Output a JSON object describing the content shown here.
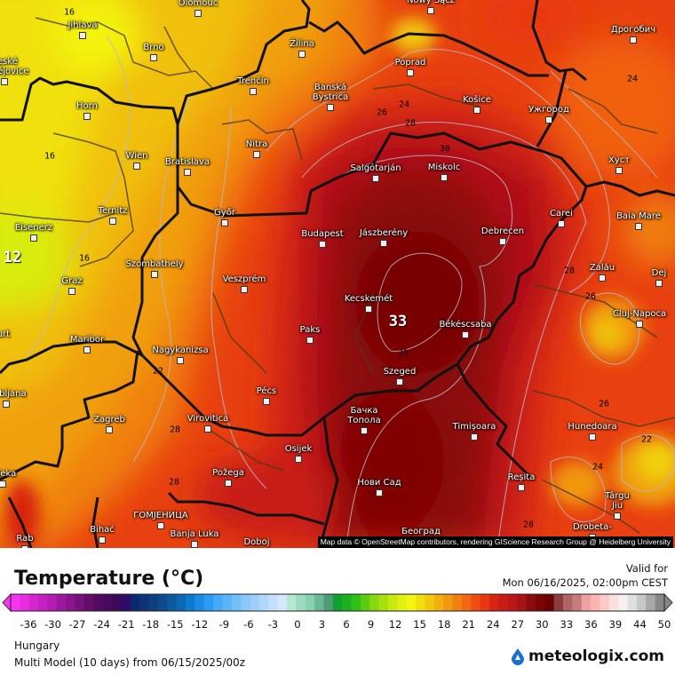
{
  "map": {
    "cities": [
      "Olomouc",
      "Nowy Sącz",
      "Jihlava",
      "Brno",
      "Žilina",
      "Poprad",
      "Дрогобич",
      "České Budějovice",
      "Trenčín",
      "Banská Bystrica",
      "Košice",
      "Ужгород",
      "Horn",
      "Nitra",
      "Wien",
      "Bratislava",
      "Salgótarján",
      "Miskolc",
      "Хуст",
      "Ternitz",
      "Eisenerz",
      "Győr",
      "Carei",
      "Baia Mare",
      "Budapest",
      "Jászberény",
      "Debrecen",
      "Szombathely",
      "Graz",
      "Veszprém",
      "Zalău",
      "Dej",
      "Kecskemét",
      "Cluj-Napoca",
      "Békéscsaba",
      "Paks",
      "Maribor",
      "Nagykanizsa",
      "Klagenfurt",
      "Szeged",
      "Ljubljana",
      "Pécs",
      "Бачка Топола",
      "Timișoara",
      "Virovitica",
      "Hunedoara",
      "Zagreb",
      "Osijek",
      "Rijeka",
      "Požega",
      "Reșita",
      "Нови Сад",
      "Târgu Jiu",
      "ГОМЈЕНИЦА",
      "Rab",
      "Bihać",
      "Banja Luka",
      "Doboj",
      "Београд",
      "Drobeta-"
    ],
    "contour_labels": [
      "16",
      "16",
      "16",
      "12",
      "24",
      "24",
      "26",
      "28",
      "30",
      "28",
      "26",
      "33",
      "32",
      "22",
      "28",
      "28",
      "26",
      "22",
      "24",
      "28"
    ],
    "attribution": "Map data © OpenStreetMap contributors, rendering GIScience Research Group @ Heidelberg University",
    "colors": {
      "hot_core": "#780404",
      "hot": "#b01018",
      "warm": "#e84010",
      "mild": "#f0a010",
      "cool": "#f0e010"
    }
  },
  "legend": {
    "title": "Temperature (°C)",
    "valid_label": "Valid for",
    "valid_date": "Mon 06/16/2025, 02:00pm CEST",
    "ticks": [
      "-36",
      "-30",
      "-27",
      "-24",
      "-21",
      "-18",
      "-15",
      "-12",
      "-9",
      "-6",
      "-3",
      "0",
      "3",
      "6",
      "9",
      "12",
      "15",
      "18",
      "21",
      "24",
      "27",
      "30",
      "33",
      "36",
      "39",
      "44",
      "50"
    ],
    "palette": [
      "#f436f0",
      "#e82de0",
      "#d626d0",
      "#c421c0",
      "#b01db0",
      "#9c199e",
      "#8a148c",
      "#76107a",
      "#640c6a",
      "#540a60",
      "#480a5c",
      "#3c0858",
      "#2c0c66",
      "#0c2870",
      "#0e3478",
      "#0e3e80",
      "#0c4a8c",
      "#0a5aa0",
      "#0a6ab4",
      "#0c7cd0",
      "#1a8ce6",
      "#2a9cf4",
      "#46aaf8",
      "#5cb4f8",
      "#72bef8",
      "#88c8fa",
      "#9ccffa",
      "#b0d8fa",
      "#c4e0fa",
      "#d6e8fa",
      "#b4e8d0",
      "#9cdcc0",
      "#88d0b0",
      "#6ab894",
      "#4e9c78",
      "#10a030",
      "#1cb020",
      "#30c018",
      "#5ccc10",
      "#88d810",
      "#a8e010",
      "#c8e810",
      "#e0f010",
      "#f4f410",
      "#f0e010",
      "#f0c810",
      "#f0b010",
      "#f09810",
      "#f08010",
      "#f06810",
      "#f04c10",
      "#e83810",
      "#d82410",
      "#c81c14",
      "#b81818",
      "#a81416",
      "#8c0a0a",
      "#780404",
      "#6c0000",
      "#8c3c3c",
      "#b06464",
      "#c47c7c",
      "#f0a0a0",
      "#fab4b4",
      "#fcc8c8",
      "#fce0e0",
      "#f8f0f0",
      "#e0e0e0",
      "#c8c8c8",
      "#a8a8a8",
      "#888888"
    ],
    "region": "Hungary",
    "model": "Multi Model (10 days) from  06/15/2025/00z"
  },
  "branding": {
    "logo": "meteologix.com"
  }
}
